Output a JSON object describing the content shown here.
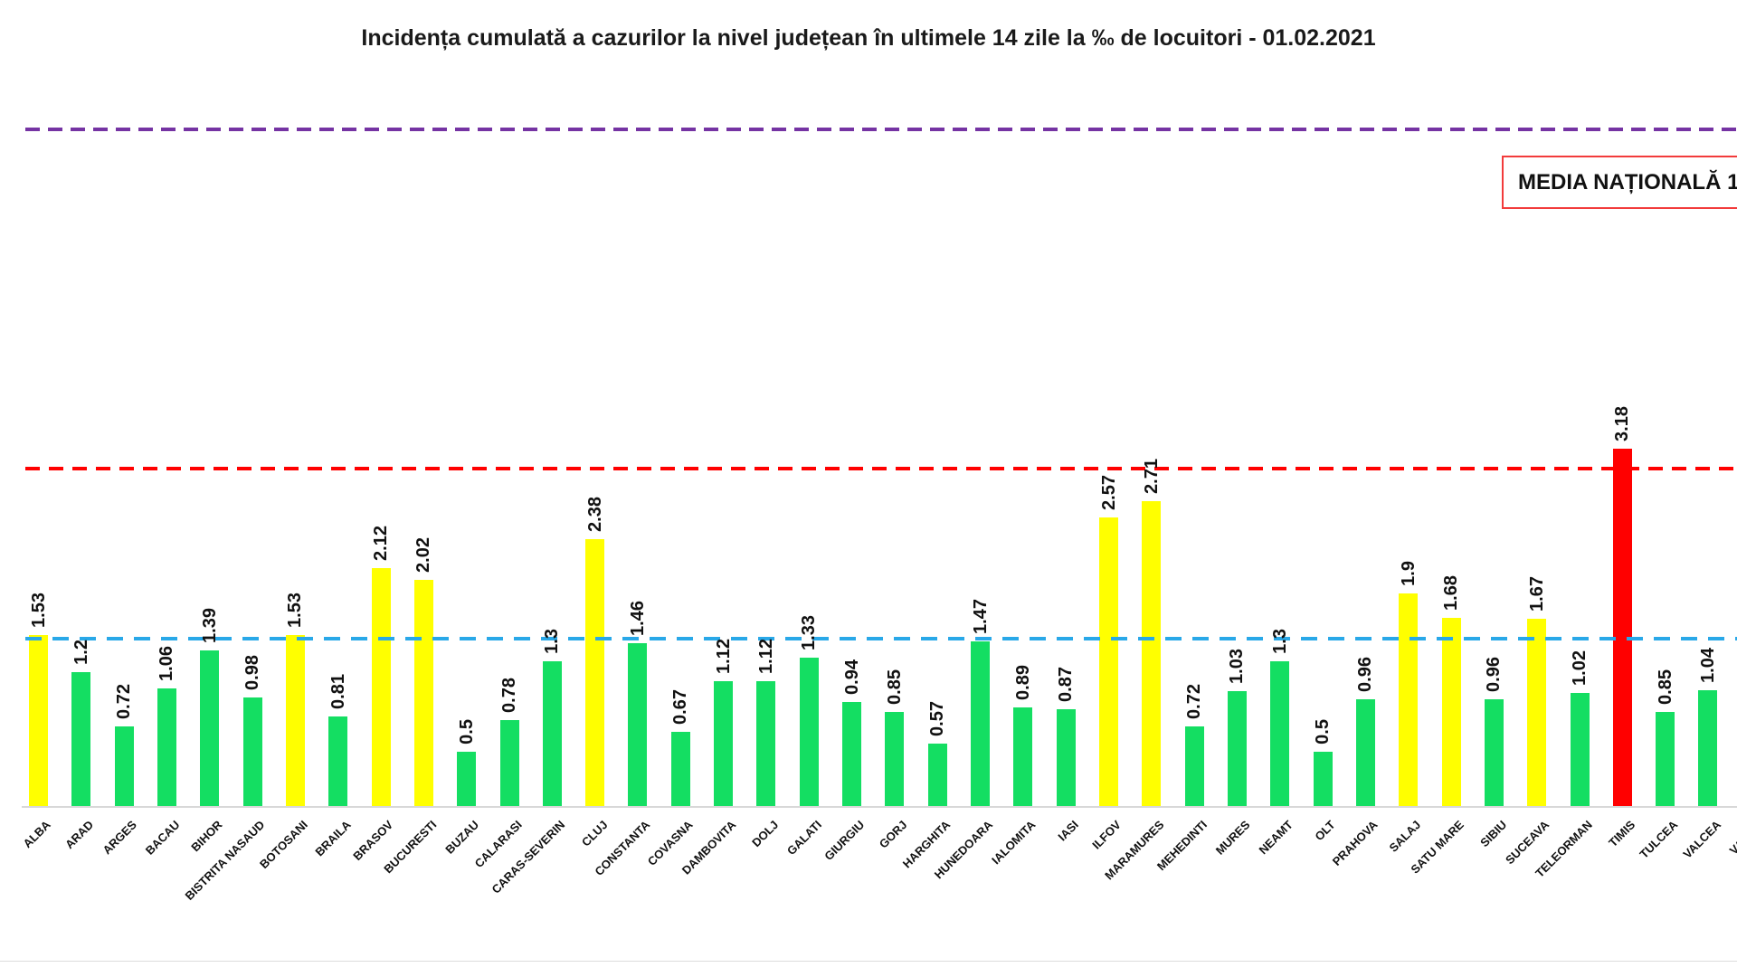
{
  "title": "Incidența cumulată a cazurilor la nivel județean în ultimele 14 zile la ‰ de locuitori - 01.02.2021",
  "national_average_box": {
    "label": "MEDIA NAȚIONALĂ 1",
    "border_color": "#f23b3b",
    "note": "text clipped at right image edge"
  },
  "chart_data": {
    "type": "bar",
    "title": "Incidența cumulată a cazurilor la nivel județean în ultimele 14 zile la ‰ de locuitori - 01.02.2021",
    "xlabel": "",
    "ylabel": "",
    "unit": "‰",
    "ylim": [
      0,
      7.1
    ],
    "grid": false,
    "legend": "none",
    "palette": {
      "green": "#14de62",
      "yellow": "#ffff00",
      "red": "#ff0000"
    },
    "reference_lines": [
      {
        "name": "threshold-6",
        "value": 6,
        "color": "#7533a3",
        "style": "dashed",
        "dash": 16,
        "gap": 9
      },
      {
        "name": "threshold-3",
        "value": 3,
        "color": "#ff0000",
        "style": "dashed",
        "dash": 16,
        "gap": 10
      },
      {
        "name": "threshold-1.5",
        "value": 1.5,
        "color": "#29a8e8",
        "style": "dashed",
        "dash": 18,
        "gap": 12
      }
    ],
    "categories": [
      "ALBA",
      "ARAD",
      "ARGES",
      "BACAU",
      "BIHOR",
      "BISTRITA NASAUD",
      "BOTOSANI",
      "BRAILA",
      "BRASOV",
      "BUCURESTI",
      "BUZAU",
      "CALARASI",
      "CARAS-SEVERIN",
      "CLUJ",
      "CONSTANTA",
      "COVASNA",
      "DAMBOVITA",
      "DOLJ",
      "GALATI",
      "GIURGIU",
      "GORJ",
      "HARGHITA",
      "HUNEDOARA",
      "IALOMITA",
      "IASI",
      "ILFOV",
      "MARAMURES",
      "MEHEDINTI",
      "MURES",
      "NEAMT",
      "OLT",
      "PRAHOVA",
      "SALAJ",
      "SATU MARE",
      "SIBIU",
      "SUCEAVA",
      "TELEORMAN",
      "TIMIS",
      "TULCEA",
      "VALCEA",
      "VASLUI"
    ],
    "values": [
      "1.53",
      "1.2",
      "0.72",
      "1.06",
      "1.39",
      "0.98",
      "1.53",
      "0.81",
      "2.12",
      "2.02",
      "0.5",
      "0.78",
      "1.3",
      "2.38",
      "1.46",
      "0.67",
      "1.12",
      "1.12",
      "1.33",
      "0.94",
      "0.85",
      "0.57",
      "1.47",
      "0.89",
      "0.87",
      "2.57",
      "2.71",
      "0.72",
      "1.03",
      "1.3",
      "0.5",
      "0.96",
      "1.9",
      "1.68",
      "0.96",
      "1.67",
      "1.02",
      "3.18",
      "0.85",
      "1.04",
      null
    ],
    "bar_colors": [
      "yellow",
      "green",
      "green",
      "green",
      "green",
      "green",
      "yellow",
      "green",
      "yellow",
      "yellow",
      "green",
      "green",
      "green",
      "yellow",
      "green",
      "green",
      "green",
      "green",
      "green",
      "green",
      "green",
      "green",
      "green",
      "green",
      "green",
      "yellow",
      "yellow",
      "green",
      "green",
      "green",
      "green",
      "green",
      "yellow",
      "yellow",
      "green",
      "yellow",
      "green",
      "red",
      "green",
      "green",
      null
    ]
  }
}
